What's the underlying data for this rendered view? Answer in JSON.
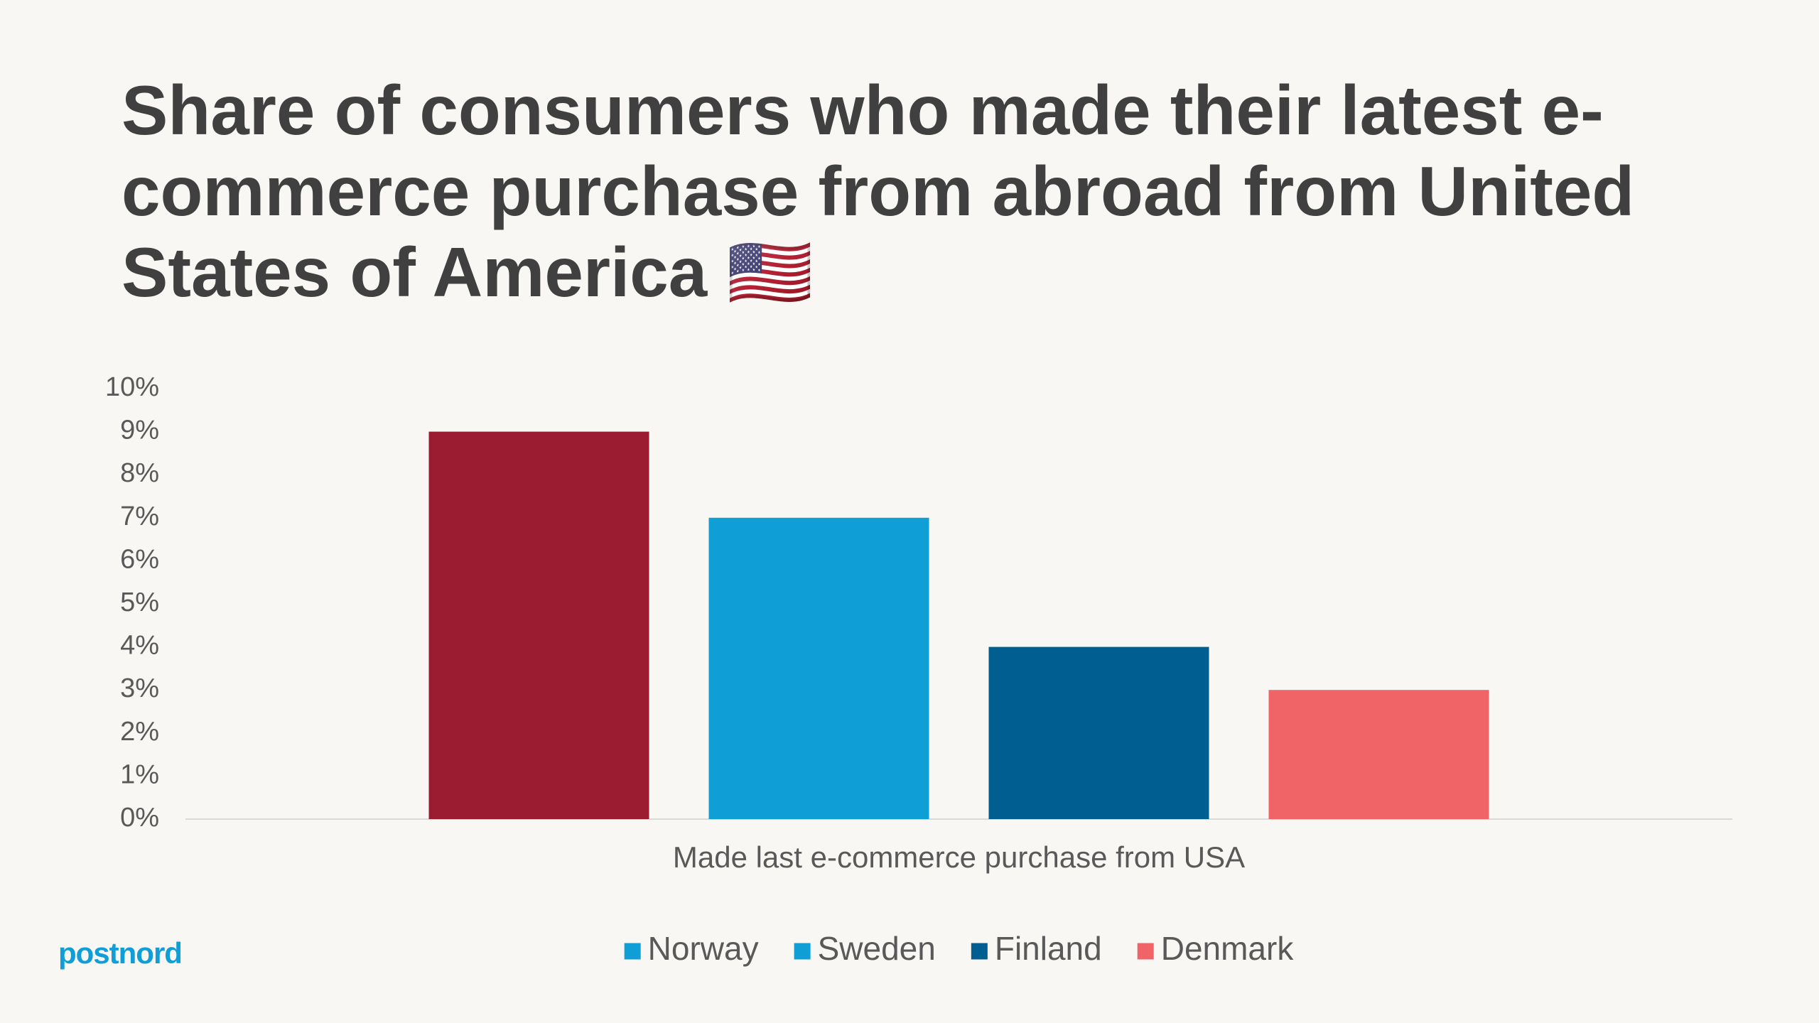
{
  "chart_data": {
    "type": "bar",
    "title": "Share of consumers who made their latest e-commerce purchase from abroad from United States of America 🇺🇸",
    "categories": [
      "Made last e-commerce purchase from USA"
    ],
    "series": [
      {
        "name": "Norway",
        "color": "#9b1b30",
        "legend_color": "#0f9fd6",
        "values": [
          9
        ]
      },
      {
        "name": "Sweden",
        "color": "#0f9fd6",
        "legend_color": "#0f9fd6",
        "values": [
          7
        ]
      },
      {
        "name": "Finland",
        "color": "#005e91",
        "legend_color": "#005e91",
        "values": [
          4
        ]
      },
      {
        "name": "Denmark",
        "color": "#f06468",
        "legend_color": "#f06468",
        "values": [
          3
        ]
      }
    ],
    "ylim": [
      0,
      10
    ],
    "yticks": [
      {
        "value": 0,
        "label": "0%"
      },
      {
        "value": 1,
        "label": "1%"
      },
      {
        "value": 2,
        "label": "2%"
      },
      {
        "value": 3,
        "label": "3%"
      },
      {
        "value": 4,
        "label": "4%"
      },
      {
        "value": 5,
        "label": "5%"
      },
      {
        "value": 6,
        "label": "6%"
      },
      {
        "value": 7,
        "label": "7%"
      },
      {
        "value": 8,
        "label": "8%"
      },
      {
        "value": 9,
        "label": "9%"
      },
      {
        "value": 10,
        "label": "10%"
      }
    ],
    "grid": false,
    "legend": "bottom"
  },
  "logo": "postnord"
}
